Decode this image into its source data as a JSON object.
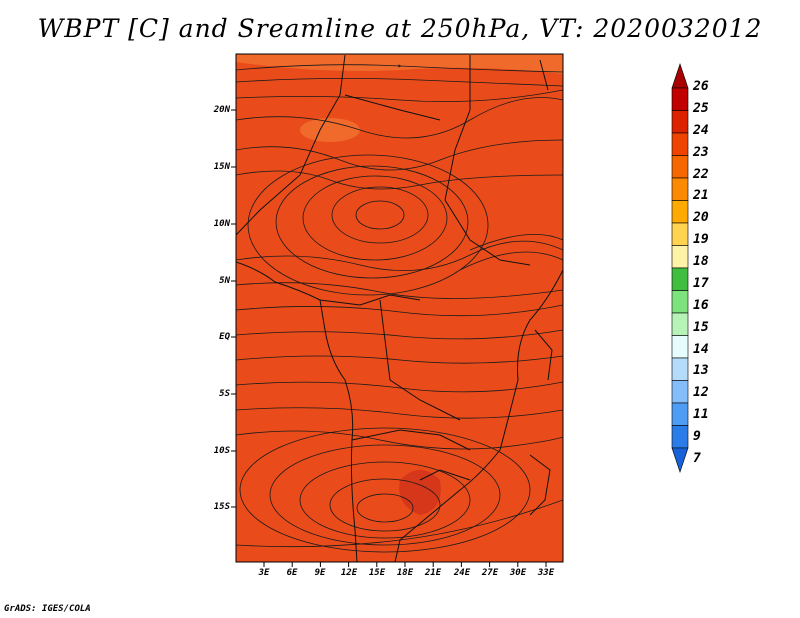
{
  "title": "WBPT [C] and Sreamline at 250hPa, VT: 2020032012",
  "credit": "GrADS: IGES/COLA",
  "map": {
    "lat_labels": [
      "20N",
      "15N",
      "10N",
      "5N",
      "EQ",
      "5S",
      "10S",
      "15S"
    ],
    "lon_labels": [
      "3E",
      "6E",
      "9E",
      "12E",
      "15E",
      "18E",
      "21E",
      "24E",
      "27E",
      "30E",
      "33E"
    ]
  },
  "colorbar": {
    "labels": [
      "26",
      "25",
      "24",
      "23",
      "22",
      "21",
      "20",
      "19",
      "18",
      "17",
      "16",
      "15",
      "14",
      "13",
      "12",
      "11",
      "9",
      "7"
    ],
    "colors": [
      "#a80000",
      "#c10000",
      "#dd2200",
      "#ee4400",
      "#f76700",
      "#fb8a00",
      "#ffaa00",
      "#ffd24f",
      "#fff3a8",
      "#3fbe3f",
      "#7de37d",
      "#b7f3b7",
      "#e7fdfd",
      "#b4dcfa",
      "#84befa",
      "#4e9cf3",
      "#2a7de8",
      "#1660d8"
    ]
  },
  "colors": {
    "field": "#e94c1a",
    "warm_patch": "#d6361a",
    "cool_patch": "#f06a2c",
    "line": "#1a1a1a"
  }
}
